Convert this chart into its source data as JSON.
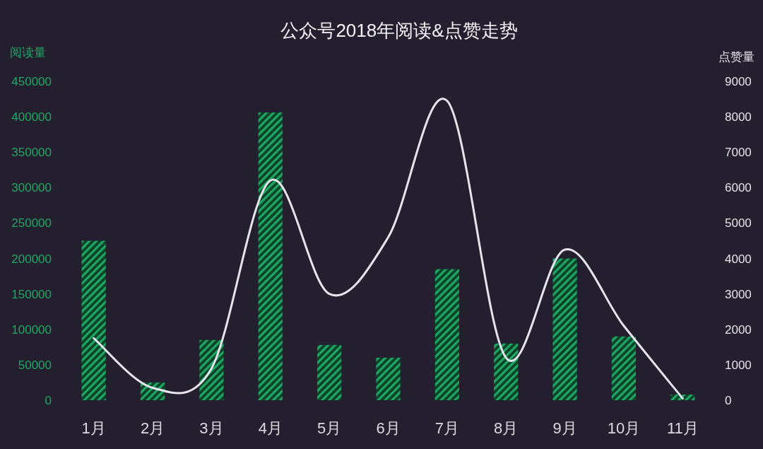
{
  "chart_data": {
    "type": "bar",
    "title": "公众号2018年阅读&点赞走势",
    "ylabel": "阅读量",
    "y2label": "点赞量",
    "categories": [
      "1月",
      "2月",
      "3月",
      "4月",
      "5月",
      "6月",
      "7月",
      "8月",
      "9月",
      "10月",
      "11月"
    ],
    "series": [
      {
        "color": "#1fa865",
        "values": [
          225000,
          25000,
          85000,
          406000,
          78000,
          60000,
          185000,
          80000,
          200000,
          90000,
          8000
        ]
      },
      {
        "type": "line",
        "axis": "y2",
        "color": "#e6e4ec",
        "values": [
          1750,
          350,
          900,
          6200,
          3000,
          4600,
          8450,
          1200,
          4250,
          2100,
          50
        ]
      }
    ],
    "ylim": [
      0,
      450000
    ],
    "yticks": [
      0,
      50000,
      100000,
      150000,
      200000,
      250000,
      300000,
      350000,
      400000,
      450000
    ],
    "y2lim": [
      0,
      9000
    ],
    "y2ticks": [
      0,
      1000,
      2000,
      3000,
      4000,
      5000,
      6000,
      7000,
      8000,
      9000
    ],
    "grid": false
  }
}
